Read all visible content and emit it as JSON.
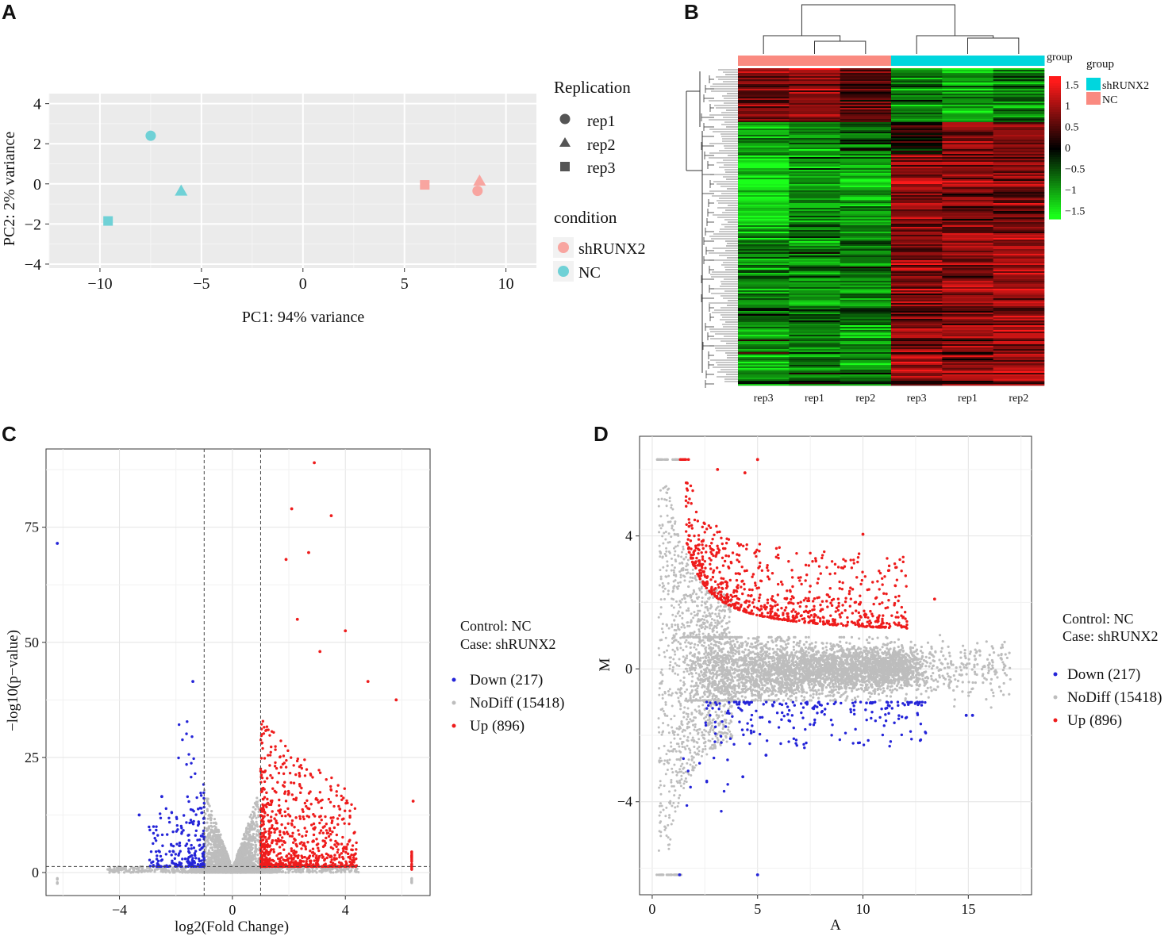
{
  "panel_labels": {
    "a": "A",
    "b": "B",
    "c": "C",
    "d": "D"
  },
  "colors": {
    "shRUNX2": "#f8a5a0",
    "NC": "#6fd1d6",
    "up": "#ee1c1c",
    "down": "#2424d8",
    "nodiff": "#bdbdbd",
    "group_shRUNX2": "#00d6de",
    "group_NC": "#fa8a80",
    "heat_high": "#ff1a1a",
    "heat_mid": "#000000",
    "heat_low": "#1aff1a",
    "panel_bg": "#ebebeb"
  },
  "chart_data": [
    {
      "id": "A",
      "type": "scatter",
      "title": "",
      "xlabel": "PC1: 94% variance",
      "ylabel": "PC2: 2% variance",
      "xlim": [
        -12.5,
        11.5
      ],
      "ylim": [
        -4.2,
        4.5
      ],
      "xticks": [
        -10,
        -5,
        0,
        5,
        10
      ],
      "xtick_labels": [
        "−10",
        "−5",
        "0",
        "5",
        "10"
      ],
      "yticks": [
        4,
        2,
        0,
        -2,
        -4
      ],
      "ytick_labels": [
        "4",
        "2",
        "0",
        "−2",
        "−4"
      ],
      "points": [
        {
          "x": -7.5,
          "y": 2.4,
          "shape": "circle",
          "condition": "NC"
        },
        {
          "x": -6.0,
          "y": -0.35,
          "shape": "triangle",
          "condition": "NC"
        },
        {
          "x": -9.6,
          "y": -1.85,
          "shape": "square",
          "condition": "NC"
        },
        {
          "x": 6.0,
          "y": -0.05,
          "shape": "square",
          "condition": "shRUNX2"
        },
        {
          "x": 8.7,
          "y": 0.15,
          "shape": "triangle",
          "condition": "shRUNX2"
        },
        {
          "x": 8.6,
          "y": -0.35,
          "shape": "circle",
          "condition": "shRUNX2"
        }
      ],
      "legend_replication": {
        "title": "Replication",
        "items": [
          "rep1",
          "rep2",
          "rep3"
        ]
      },
      "legend_condition": {
        "title": "condition",
        "items": [
          "shRUNX2",
          "NC"
        ]
      }
    },
    {
      "id": "B",
      "type": "heatmap",
      "columns": [
        "rep3",
        "rep1",
        "rep2",
        "rep3",
        "rep1",
        "rep2"
      ],
      "column_groups": [
        "NC",
        "NC",
        "NC",
        "shRUNX2",
        "shRUNX2",
        "shRUNX2"
      ],
      "annotation_label": "group",
      "colorbar_ticks": [
        1.5,
        1,
        0.5,
        0,
        -0.5,
        -1,
        -1.5
      ],
      "colorbar_tick_labels": [
        "1.5",
        "1",
        "0.5",
        "0",
        "−0.5",
        "−1",
        "−1.5"
      ],
      "colorbar_range": [
        -1.7,
        1.7
      ],
      "legend": {
        "title": "group",
        "items": [
          "shRUNX2",
          "NC"
        ]
      },
      "row_clusters": [
        {
          "fraction": 0.17,
          "values": [
            0.7,
            0.9,
            0.5,
            -0.7,
            -1.0,
            -0.8
          ]
        },
        {
          "fraction": 0.1,
          "values": [
            -0.9,
            -0.9,
            -0.6,
            0.2,
            0.9,
            0.8
          ]
        },
        {
          "fraction": 0.25,
          "values": [
            -1.4,
            -0.9,
            -1.0,
            1.0,
            0.8,
            0.6
          ]
        },
        {
          "fraction": 0.48,
          "values": [
            -0.9,
            -0.8,
            -0.8,
            0.8,
            0.9,
            1.0
          ]
        }
      ]
    },
    {
      "id": "C",
      "type": "scatter",
      "title": "",
      "xlabel": "log2(Fold Change)",
      "ylabel": "−log10(p−value)",
      "xlim": [
        -6.6,
        7.0
      ],
      "ylim": [
        -5,
        92
      ],
      "xticks": [
        -4,
        0,
        4
      ],
      "xtick_labels": [
        "−4",
        "0",
        "4"
      ],
      "yticks": [
        0,
        25,
        50,
        75
      ],
      "ytick_labels": [
        "0",
        "25",
        "50",
        "75"
      ],
      "vlines": [
        -1,
        1
      ],
      "hline": 1.3,
      "annotation": {
        "control": "Control: NC",
        "case": "Case: shRUNX2"
      },
      "series": [
        {
          "name": "Down",
          "label": "Down (217)",
          "count": 217,
          "color": "#2424d8"
        },
        {
          "name": "NoDiff",
          "label": "NoDiff (15418)",
          "count": 15418,
          "color": "#bdbdbd"
        },
        {
          "name": "Up",
          "label": "Up (896)",
          "count": 896,
          "color": "#ee1c1c"
        }
      ],
      "highlight_points": [
        {
          "x": 2.9,
          "y": 89,
          "series": "Up"
        },
        {
          "x": 2.1,
          "y": 79,
          "series": "Up"
        },
        {
          "x": 3.5,
          "y": 77.5,
          "series": "Up"
        },
        {
          "x": 2.7,
          "y": 69.5,
          "series": "Up"
        },
        {
          "x": 1.9,
          "y": 68,
          "series": "Up"
        },
        {
          "x": -6.2,
          "y": 71.5,
          "series": "Down"
        },
        {
          "x": -1.4,
          "y": 41.5,
          "series": "Down"
        },
        {
          "x": 4.8,
          "y": 41.5,
          "series": "Up"
        },
        {
          "x": 5.8,
          "y": 37.5,
          "series": "Up"
        },
        {
          "x": 4.0,
          "y": 52.5,
          "series": "Up"
        },
        {
          "x": 2.3,
          "y": 55,
          "series": "Up"
        },
        {
          "x": 3.1,
          "y": 48,
          "series": "Up"
        },
        {
          "x": 6.4,
          "y": 15.5,
          "series": "Up"
        },
        {
          "x": -2.5,
          "y": 16.5,
          "series": "Down"
        },
        {
          "x": -3.3,
          "y": 12.5,
          "series": "Down"
        }
      ]
    },
    {
      "id": "D",
      "type": "scatter",
      "title": "",
      "xlabel": "A",
      "ylabel": "M",
      "xlim": [
        -0.6,
        18.0
      ],
      "ylim": [
        -6.8,
        7.0
      ],
      "xticks": [
        0,
        5,
        10,
        15
      ],
      "xtick_labels": [
        "0",
        "5",
        "10",
        "15"
      ],
      "yticks": [
        4,
        0,
        -4
      ],
      "ytick_labels": [
        "4",
        "0",
        "−4"
      ],
      "annotation": {
        "control": "Control: NC",
        "case": "Case: shRUNX2"
      },
      "series": [
        {
          "name": "Down",
          "label": "Down (217)",
          "count": 217,
          "color": "#2424d8"
        },
        {
          "name": "NoDiff",
          "label": "NoDiff (15418)",
          "count": 15418,
          "color": "#bdbdbd"
        },
        {
          "name": "Up",
          "label": "Up (896)",
          "count": 896,
          "color": "#ee1c1c"
        }
      ],
      "highlight_points": [
        {
          "x": 5.0,
          "y": 6.3,
          "series": "Up"
        },
        {
          "x": 4.4,
          "y": 5.9,
          "series": "Up"
        },
        {
          "x": 3.1,
          "y": 6.0,
          "series": "Up"
        },
        {
          "x": 10.0,
          "y": 4.05,
          "series": "Up"
        },
        {
          "x": 13.4,
          "y": 2.1,
          "series": "Up"
        },
        {
          "x": 4.3,
          "y": -3.25,
          "series": "Down"
        },
        {
          "x": 5.4,
          "y": -2.6,
          "series": "Down"
        },
        {
          "x": 14.9,
          "y": -1.4,
          "series": "Down"
        },
        {
          "x": 15.2,
          "y": -1.4,
          "series": "Down"
        },
        {
          "x": 5.0,
          "y": -6.2,
          "series": "Down"
        },
        {
          "x": 1.3,
          "y": -6.2,
          "series": "Down"
        }
      ]
    }
  ]
}
